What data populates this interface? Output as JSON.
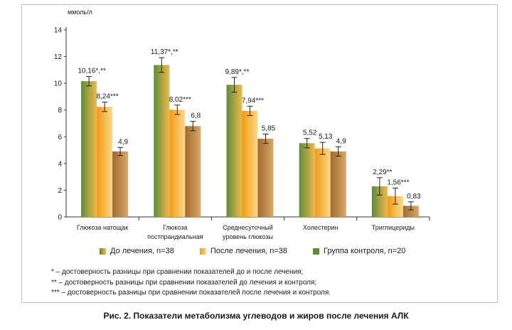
{
  "chart_data": {
    "type": "bar",
    "unit_label": "ммоль/л",
    "ylim": [
      0,
      14
    ],
    "yticks": [
      0,
      2,
      4,
      6,
      8,
      10,
      12,
      14
    ],
    "grid": false,
    "categories": [
      [
        "Глюкоза натощак"
      ],
      [
        "Глюкоза",
        "постпрандиальная"
      ],
      [
        "Среднесуточный",
        "уровень глюкозы"
      ],
      [
        "Холестерин"
      ],
      [
        "Триглицериды"
      ]
    ],
    "series": [
      {
        "name": "До лечения, n=38",
        "color": "#7a9c4a",
        "color_light": "#f0b84c",
        "values": [
          10.16,
          11.37,
          9.89,
          5.52,
          2.29
        ],
        "errors": [
          0.35,
          0.55,
          0.55,
          0.35,
          0.65
        ],
        "labels": [
          "10,16*,**",
          "11,37*,**",
          "9,89*,**",
          "5,52",
          "2,29**"
        ]
      },
      {
        "name": "После лечения, n=38",
        "color": "#f2a51e",
        "color_light": "#fbd98a",
        "values": [
          8.24,
          8.02,
          7.94,
          5.13,
          1.56
        ],
        "errors": [
          0.35,
          0.35,
          0.35,
          0.45,
          0.6
        ],
        "labels": [
          "8,24***",
          "8,02***",
          "7,94***",
          "5,13",
          "1,56***"
        ]
      },
      {
        "name": "Группа контроля, n=20",
        "color": "#b07a3c",
        "color_light": "#d9a866",
        "values": [
          4.9,
          6.8,
          5.85,
          4.9,
          0.83
        ],
        "errors": [
          0.3,
          0.35,
          0.35,
          0.35,
          0.3
        ],
        "labels": [
          "4,9",
          "6,8",
          "5,85",
          "4,9",
          "0,83"
        ]
      }
    ]
  },
  "legend_marker": "■",
  "footnotes": [
    "* – достоверность разницы при сравнении показателей до и после лечения;",
    "** – достоверность  разницы при сравнении показателей до лечения и контроля;",
    "*** – достоверность разницы при сравнении показателей после лечения и контроля."
  ],
  "caption": "Рис. 2. Показатели метаболизма углеводов и жиров после лечения АЛК"
}
